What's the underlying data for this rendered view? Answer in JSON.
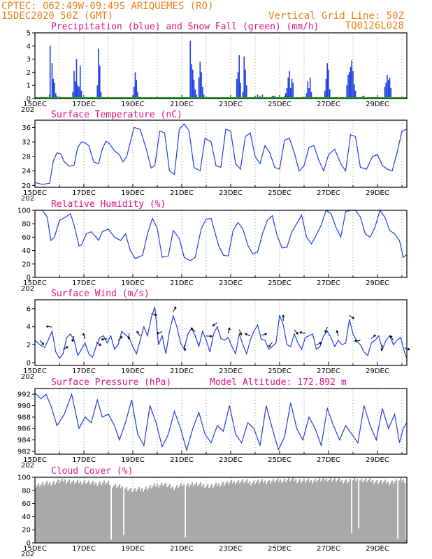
{
  "header": {
    "left_line1": "CPTEC:   062:49W-09:49S  ARIQUEMES (RO)",
    "left_line2": "15DEC2020 50Z (GMT)",
    "right_line1": "Vertical Grid Line: 50Z",
    "right_line2": "TQ0126L028"
  },
  "x_tick_labels": [
    "15DEC",
    "17DEC",
    "19DEC",
    "21DEC",
    "23DEC",
    "25DEC",
    "27DEC",
    "29DEC"
  ],
  "x_year_fragment": "202",
  "colors": {
    "line": "#1b3fe0",
    "bars": "#1b3fe0",
    "snow": "#22aa22",
    "cloud": "#a9a9a9",
    "title": "#e0108a",
    "header": "#e8801a"
  },
  "chart_data": [
    {
      "type": "bar",
      "title": "Precipitation (blue) and Snow Fall (green) (mm/h)",
      "ylim": [
        0,
        5
      ],
      "yticks": [
        0,
        1,
        2,
        3,
        4,
        5
      ],
      "x_range_days": [
        0,
        15.2
      ],
      "series": [
        {
          "name": "Precipitation",
          "points": [
            [
              0.6,
              0.3
            ],
            [
              0.62,
              4.0
            ],
            [
              0.7,
              2.7
            ],
            [
              0.75,
              1.5
            ],
            [
              0.8,
              1.2
            ],
            [
              0.85,
              0.4
            ],
            [
              0.9,
              0.2
            ],
            [
              1.55,
              0.5
            ],
            [
              1.6,
              2.1
            ],
            [
              1.65,
              1.3
            ],
            [
              1.7,
              3.0
            ],
            [
              1.75,
              1.0
            ],
            [
              1.8,
              0.9
            ],
            [
              1.85,
              2.5
            ],
            [
              1.9,
              0.6
            ],
            [
              2.55,
              1.0
            ],
            [
              2.6,
              3.8
            ],
            [
              2.65,
              2.5
            ],
            [
              2.7,
              0.5
            ],
            [
              4.0,
              0.2
            ],
            [
              4.05,
              0.9
            ],
            [
              4.1,
              2.0
            ],
            [
              4.15,
              1.4
            ],
            [
              4.2,
              0.5
            ],
            [
              6.35,
              4.4
            ],
            [
              6.4,
              2.6
            ],
            [
              6.45,
              2.2
            ],
            [
              6.5,
              1.4
            ],
            [
              6.55,
              0.7
            ],
            [
              6.6,
              0.3
            ],
            [
              6.7,
              1.6
            ],
            [
              6.75,
              2.8
            ],
            [
              6.8,
              2.0
            ],
            [
              6.85,
              0.9
            ],
            [
              6.9,
              0.3
            ],
            [
              8.25,
              1.5
            ],
            [
              8.3,
              2.0
            ],
            [
              8.35,
              3.3
            ],
            [
              8.4,
              1.2
            ],
            [
              8.5,
              0.5
            ],
            [
              8.55,
              3.2
            ],
            [
              8.6,
              2.2
            ],
            [
              8.65,
              1.0
            ],
            [
              9.0,
              0.2
            ],
            [
              9.1,
              0.3
            ],
            [
              9.2,
              0.2
            ],
            [
              9.3,
              0.3
            ],
            [
              9.7,
              0.2
            ],
            [
              9.75,
              0.2
            ],
            [
              9.8,
              0.2
            ],
            [
              10.2,
              0.2
            ],
            [
              10.25,
              0.4
            ],
            [
              10.3,
              0.8
            ],
            [
              10.35,
              1.6
            ],
            [
              10.4,
              2.1
            ],
            [
              10.45,
              0.8
            ],
            [
              10.5,
              1.5
            ],
            [
              10.55,
              1.2
            ],
            [
              11.1,
              0.4
            ],
            [
              11.15,
              1.3
            ],
            [
              11.2,
              0.8
            ],
            [
              11.25,
              1.6
            ],
            [
              11.3,
              0.5
            ],
            [
              11.85,
              0.6
            ],
            [
              11.9,
              1.5
            ],
            [
              11.95,
              2.7
            ],
            [
              12.0,
              2.2
            ],
            [
              12.05,
              0.7
            ],
            [
              12.75,
              1.0
            ],
            [
              12.8,
              1.8
            ],
            [
              12.85,
              2.0
            ],
            [
              12.9,
              2.4
            ],
            [
              12.95,
              2.9
            ],
            [
              13.0,
              2.1
            ],
            [
              13.05,
              1.1
            ],
            [
              13.1,
              0.6
            ],
            [
              13.4,
              0.2
            ],
            [
              13.45,
              0.2
            ],
            [
              14.3,
              0.9
            ],
            [
              14.35,
              1.2
            ],
            [
              14.4,
              1.8
            ],
            [
              14.45,
              1.4
            ],
            [
              14.5,
              1.6
            ],
            [
              14.55,
              0.8
            ]
          ]
        },
        {
          "name": "Snow Fall",
          "value": 0
        }
      ]
    },
    {
      "type": "line",
      "title": "Surface Temperature (nC)",
      "ylim": [
        19.5,
        38
      ],
      "yticks": [
        20,
        24,
        28,
        32,
        36
      ],
      "x_range_days": [
        0,
        15.2
      ],
      "x": [
        0,
        0.3,
        0.6,
        0.75,
        0.9,
        1.05,
        1.2,
        1.4,
        1.6,
        1.75,
        1.9,
        2.05,
        2.2,
        2.4,
        2.6,
        2.75,
        2.9,
        3.05,
        3.25,
        3.45,
        3.6,
        3.75,
        3.9,
        4.05,
        4.3,
        4.55,
        4.75,
        4.9,
        5.1,
        5.3,
        5.5,
        5.7,
        5.9,
        6.1,
        6.3,
        6.5,
        6.75,
        6.95,
        7.2,
        7.4,
        7.6,
        7.8,
        8.0,
        8.2,
        8.4,
        8.6,
        8.8,
        9.0,
        9.2,
        9.4,
        9.6,
        9.8,
        10.0,
        10.2,
        10.4,
        10.6,
        10.8,
        11.0,
        11.2,
        11.4,
        11.6,
        11.8,
        12.0,
        12.25,
        12.5,
        12.7,
        12.9,
        13.1,
        13.3,
        13.55,
        13.8,
        14.0,
        14.2,
        14.4,
        14.6,
        14.8,
        15.0,
        15.2
      ],
      "y": [
        20.8,
        20.3,
        20.6,
        26.8,
        29.0,
        28.7,
        26.5,
        25.3,
        25.6,
        30.5,
        32.0,
        31.7,
        31.0,
        26.5,
        26.0,
        30.0,
        32.2,
        31.5,
        29.5,
        28.5,
        26.5,
        28.0,
        32.0,
        36.0,
        35.5,
        30.0,
        24.8,
        25.5,
        35.0,
        34.5,
        24.0,
        23.0,
        35.5,
        37.0,
        35.0,
        25.0,
        24.0,
        33.0,
        32.0,
        25.5,
        25.0,
        35.5,
        35.0,
        26.0,
        24.5,
        33.5,
        34.5,
        28.0,
        26.0,
        31.0,
        29.0,
        25.0,
        24.5,
        32.5,
        33.0,
        29.0,
        24.0,
        25.5,
        30.5,
        31.0,
        27.0,
        24.0,
        28.5,
        30.0,
        26.0,
        24.0,
        34.0,
        33.5,
        25.0,
        24.5,
        28.0,
        28.5,
        25.5,
        24.5,
        24.0,
        29.0,
        35.0,
        35.5
      ]
    },
    {
      "type": "line",
      "title": "Relative Humidity (%)",
      "ylim": [
        0,
        100
      ],
      "yticks": [
        0,
        20,
        40,
        60,
        80,
        100
      ],
      "x_range_days": [
        0,
        15.2
      ],
      "x": [
        0,
        0.3,
        0.5,
        0.65,
        0.8,
        1.0,
        1.25,
        1.45,
        1.6,
        1.8,
        1.9,
        2.1,
        2.3,
        2.5,
        2.6,
        2.75,
        3.0,
        3.25,
        3.5,
        3.7,
        3.9,
        4.1,
        4.4,
        4.6,
        4.8,
        5.0,
        5.2,
        5.45,
        5.65,
        5.9,
        6.1,
        6.35,
        6.55,
        6.8,
        7.0,
        7.2,
        7.5,
        7.7,
        7.9,
        8.1,
        8.3,
        8.5,
        8.7,
        8.9,
        9.1,
        9.3,
        9.5,
        9.7,
        9.9,
        10.1,
        10.3,
        10.5,
        10.7,
        10.9,
        11.1,
        11.3,
        11.5,
        11.7,
        11.9,
        12.1,
        12.3,
        12.5,
        12.7,
        12.9,
        13.1,
        13.3,
        13.5,
        13.7,
        13.9,
        14.1,
        14.3,
        14.5,
        14.7,
        14.9,
        15.05,
        15.2
      ],
      "y": [
        100,
        100,
        90,
        55,
        60,
        85,
        90,
        95,
        78,
        47,
        48,
        65,
        68,
        60,
        55,
        68,
        72,
        60,
        55,
        65,
        40,
        28,
        33,
        65,
        88,
        73,
        30,
        32,
        70,
        58,
        30,
        25,
        30,
        73,
        87,
        88,
        48,
        33,
        32,
        70,
        82,
        72,
        48,
        35,
        38,
        65,
        85,
        92,
        62,
        44,
        45,
        68,
        80,
        93,
        60,
        50,
        63,
        78,
        100,
        95,
        75,
        60,
        98,
        100,
        100,
        90,
        65,
        60,
        75,
        100,
        90,
        70,
        65,
        55,
        30,
        34
      ]
    },
    {
      "type": "line",
      "title": "Surface Wind (m/s)",
      "ylim": [
        -0.3,
        7
      ],
      "yticks": [
        0,
        2,
        4,
        6
      ],
      "x_range_days": [
        0,
        15.2
      ],
      "x": [
        0,
        0.2,
        0.4,
        0.55,
        0.7,
        0.85,
        1.0,
        1.15,
        1.3,
        1.45,
        1.6,
        1.75,
        1.9,
        2.05,
        2.2,
        2.35,
        2.5,
        2.65,
        2.8,
        2.95,
        3.1,
        3.25,
        3.4,
        3.55,
        3.7,
        3.85,
        4.0,
        4.15,
        4.3,
        4.45,
        4.6,
        4.75,
        4.9,
        5.05,
        5.2,
        5.35,
        5.5,
        5.65,
        5.8,
        5.95,
        6.1,
        6.25,
        6.4,
        6.55,
        6.7,
        6.85,
        7.0,
        7.15,
        7.3,
        7.45,
        7.6,
        7.75,
        7.9,
        8.05,
        8.2,
        8.35,
        8.5,
        8.65,
        8.8,
        8.95,
        9.1,
        9.25,
        9.4,
        9.55,
        9.7,
        9.85,
        10.0,
        10.15,
        10.3,
        10.45,
        10.6,
        10.75,
        10.9,
        11.05,
        11.2,
        11.35,
        11.5,
        11.65,
        11.8,
        11.95,
        12.1,
        12.25,
        12.4,
        12.55,
        12.7,
        12.85,
        13.0,
        13.15,
        13.3,
        13.45,
        13.6,
        13.75,
        13.9,
        14.05,
        14.2,
        14.35,
        14.5,
        14.65,
        14.8,
        14.95,
        15.1,
        15.2
      ],
      "y": [
        2.5,
        2.0,
        1.7,
        2.6,
        3.5,
        1.2,
        0.5,
        1.0,
        2.8,
        3.2,
        2.5,
        0.8,
        1.5,
        2.2,
        1.0,
        0.6,
        1.8,
        2.8,
        3.0,
        2.2,
        3.0,
        1.5,
        2.0,
        3.5,
        3.1,
        2.8,
        1.8,
        1.0,
        2.5,
        4.0,
        3.0,
        5.0,
        6.2,
        2.0,
        3.0,
        1.0,
        3.5,
        5.2,
        4.0,
        2.2,
        1.5,
        3.2,
        3.8,
        3.0,
        1.8,
        3.5,
        2.5,
        1.2,
        3.2,
        4.0,
        2.7,
        2.5,
        2.8,
        1.8,
        1.0,
        3.2,
        2.0,
        1.0,
        2.5,
        3.5,
        4.2,
        2.6,
        2.5,
        1.5,
        1.8,
        2.2,
        5.3,
        4.2,
        2.0,
        1.8,
        3.2,
        2.2,
        1.5,
        2.8,
        3.0,
        3.2,
        1.5,
        1.8,
        3.0,
        3.5,
        2.8,
        1.8,
        2.5,
        2.0,
        2.2,
        4.8,
        3.2,
        2.4,
        2.0,
        1.2,
        0.8,
        2.2,
        2.5,
        3.0,
        1.5,
        2.5,
        3.0,
        2.0,
        2.5,
        2.8,
        1.2,
        0.5
      ]
    },
    {
      "type": "line",
      "title": "Surface Pressure (hPa)",
      "annotation": "Model Altitude: 172.892 m",
      "ylim": [
        981.5,
        993
      ],
      "yticks": [
        982,
        984,
        986,
        988,
        990,
        992
      ],
      "x_range_days": [
        0,
        15.2
      ],
      "x": [
        0,
        0.25,
        0.45,
        0.65,
        0.9,
        1.2,
        1.5,
        1.8,
        2.05,
        2.3,
        2.55,
        2.75,
        3.0,
        3.25,
        3.45,
        3.7,
        3.95,
        4.2,
        4.45,
        4.7,
        4.95,
        5.2,
        5.45,
        5.7,
        5.95,
        6.2,
        6.45,
        6.7,
        6.95,
        7.2,
        7.45,
        7.7,
        7.95,
        8.2,
        8.45,
        8.7,
        8.95,
        9.2,
        9.45,
        9.7,
        9.95,
        10.2,
        10.45,
        10.7,
        10.95,
        11.2,
        11.45,
        11.7,
        11.95,
        12.2,
        12.45,
        12.7,
        12.95,
        13.2,
        13.45,
        13.7,
        13.95,
        14.2,
        14.45,
        14.7,
        14.9,
        15.05,
        15.2
      ],
      "y": [
        992.2,
        991.2,
        992.0,
        990.0,
        986.5,
        988.5,
        992.0,
        986.0,
        988.0,
        987.0,
        991.0,
        988.0,
        988.5,
        986.5,
        984.0,
        987.0,
        991.0,
        985.0,
        983.0,
        990.0,
        987.0,
        982.8,
        985.0,
        989.0,
        986.0,
        982.2,
        986.0,
        988.8,
        985.0,
        983.5,
        986.5,
        985.5,
        990.0,
        985.0,
        983.5,
        987.0,
        986.0,
        983.0,
        990.0,
        986.0,
        982.3,
        984.5,
        990.5,
        986.0,
        984.0,
        988.0,
        986.0,
        983.0,
        989.5,
        986.5,
        984.0,
        986.5,
        985.0,
        983.5,
        990.0,
        986.5,
        984.0,
        989.5,
        986.0,
        988.5,
        983.5,
        986.0,
        987.0
      ]
    },
    {
      "type": "bar",
      "title": "Cloud Cover (%)",
      "ylim": [
        0,
        100
      ],
      "yticks": [
        0,
        20,
        40,
        60,
        80,
        100
      ],
      "x_range_days": [
        0,
        15.2
      ],
      "envelope_x": [
        0,
        0.4,
        0.8,
        1.2,
        1.6,
        2.0,
        2.4,
        2.8,
        3.2,
        3.6,
        4.0,
        4.4,
        4.8,
        5.2,
        5.6,
        6.0,
        6.4,
        6.8,
        7.2,
        7.6,
        8.0,
        8.4,
        8.8,
        9.2,
        9.6,
        10.0,
        10.4,
        10.8,
        11.2,
        11.6,
        12.0,
        12.4,
        12.8,
        13.2,
        13.6,
        14.0,
        14.4,
        14.8,
        15.2
      ],
      "envelope_y": [
        88,
        90,
        92,
        95,
        92,
        93,
        90,
        92,
        88,
        85,
        80,
        82,
        86,
        90,
        84,
        88,
        90,
        88,
        86,
        90,
        92,
        94,
        92,
        93,
        94,
        95,
        96,
        95,
        94,
        96,
        97,
        95,
        94,
        96,
        95,
        93,
        92,
        94,
        96
      ],
      "dips": [
        [
          3.1,
          5
        ],
        [
          3.6,
          12
        ],
        [
          6.1,
          8
        ],
        [
          12.9,
          15
        ],
        [
          13.2,
          22
        ],
        [
          14.8,
          6
        ],
        [
          15.15,
          5
        ]
      ]
    }
  ],
  "panels": {
    "p1": {
      "title": "Precipitation (blue) and Snow Fall (green) (mm/h)"
    },
    "p2": {
      "title": "Surface Temperature (nC)"
    },
    "p3": {
      "title": "Relative Humidity (%)"
    },
    "p4": {
      "title": "Surface Wind (m/s)"
    },
    "p5": {
      "title": "Surface Pressure (hPa)",
      "annotation": "Model Altitude: 172.892 m"
    },
    "p6": {
      "title": "Cloud Cover (%)"
    }
  }
}
